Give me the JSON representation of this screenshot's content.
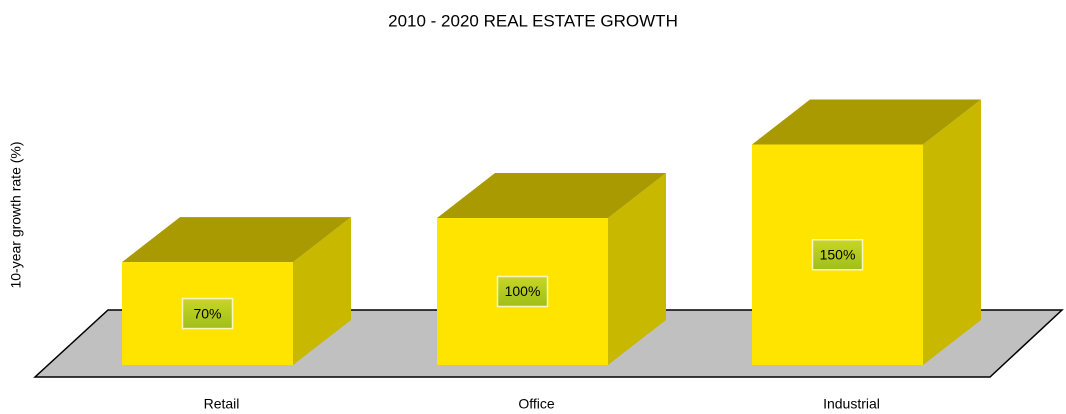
{
  "chart_data": {
    "type": "bar3d",
    "title": "2010 - 2020 REAL ESTATE GROWTH",
    "y_label": "10-year growth rate (%)",
    "categories": [
      "Retail",
      "Office",
      "Industrial"
    ],
    "values": [
      70,
      100,
      150
    ],
    "value_labels": [
      "70%",
      "100%",
      "150%"
    ],
    "color": "#ffe400"
  }
}
